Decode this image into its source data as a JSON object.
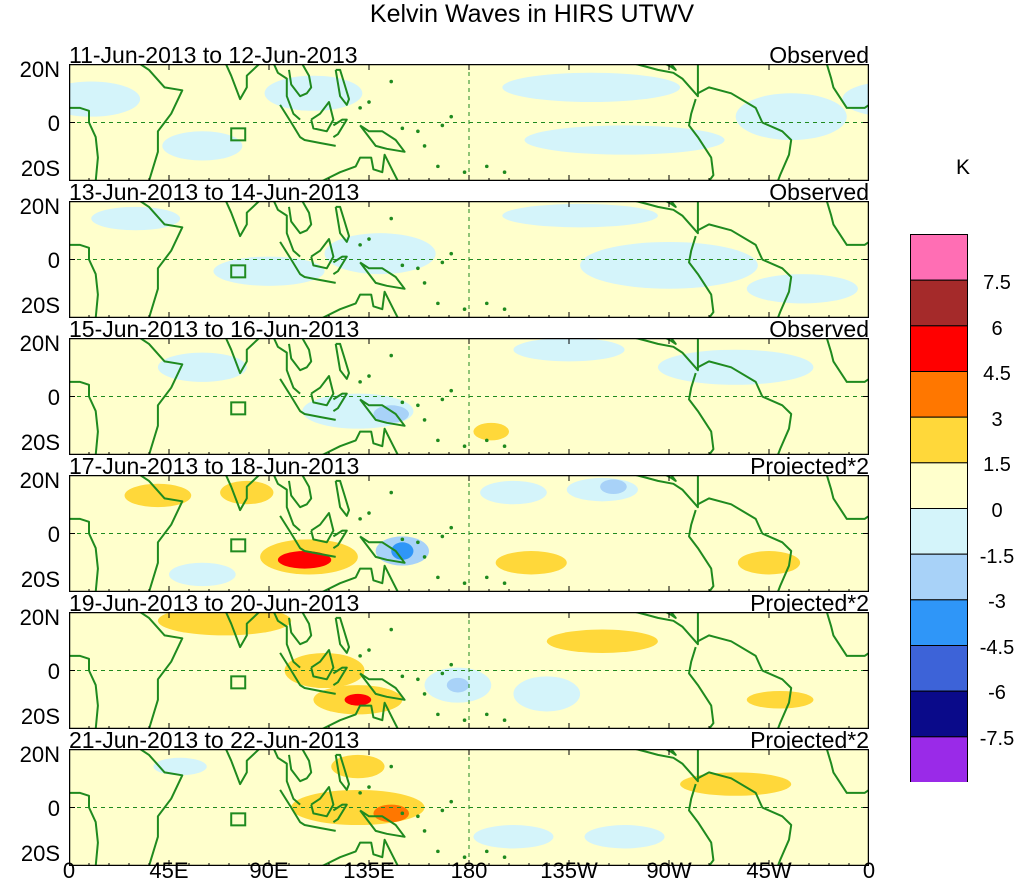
{
  "chart_data": {
    "type": "heatmap",
    "title": "Kelvin Waves in HIRS UTWV",
    "xlabel": "",
    "ylabel": "",
    "x_ticks": [
      "0",
      "45E",
      "90E",
      "135E",
      "180",
      "135W",
      "90W",
      "45W",
      "0"
    ],
    "y_ticks": [
      "20N",
      "0",
      "20S"
    ],
    "xlim": [
      0,
      360
    ],
    "ylim": [
      -20,
      20
    ],
    "colorbar": {
      "unit": "K",
      "levels": [
        "7.5",
        "6",
        "4.5",
        "3",
        "1.5",
        "0",
        "-1.5",
        "-3",
        "-4.5",
        "-6",
        "-7.5"
      ],
      "colors": [
        "#ff6eb4",
        "#a52a2a",
        "#ff0000",
        "#ff7700",
        "#ffd83a",
        "#ffffcc",
        "#d4f4fa",
        "#a8d2f8",
        "#2f96f8",
        "#3d63d8",
        "#0a0a8a",
        "#9a2ae8"
      ]
    },
    "panels": [
      {
        "date_range": "11-Jun-2013 to 12-Jun-2013",
        "kind": "Observed",
        "features": [
          {
            "lon": 10,
            "lat": 8,
            "rx": 22,
            "ry": 6,
            "value": -1.5
          },
          {
            "lon": 60,
            "lat": -8,
            "rx": 18,
            "ry": 5,
            "value": -1.5
          },
          {
            "lon": 110,
            "lat": 10,
            "rx": 22,
            "ry": 6,
            "value": -1.5
          },
          {
            "lon": 235,
            "lat": 12,
            "rx": 40,
            "ry": 5,
            "value": -1.5
          },
          {
            "lon": 250,
            "lat": -6,
            "rx": 45,
            "ry": 5,
            "value": -1.5
          },
          {
            "lon": 325,
            "lat": 2,
            "rx": 25,
            "ry": 8,
            "value": -1.5
          }
        ]
      },
      {
        "date_range": "13-Jun-2013 to 14-Jun-2013",
        "kind": "Observed",
        "features": [
          {
            "lon": 30,
            "lat": 14,
            "rx": 20,
            "ry": 4,
            "value": -1.5
          },
          {
            "lon": 90,
            "lat": -4,
            "rx": 25,
            "ry": 5,
            "value": -1.5
          },
          {
            "lon": 140,
            "lat": 2,
            "rx": 25,
            "ry": 7,
            "value": -1.5
          },
          {
            "lon": 230,
            "lat": 15,
            "rx": 35,
            "ry": 4,
            "value": -1.5
          },
          {
            "lon": 270,
            "lat": -2,
            "rx": 40,
            "ry": 8,
            "value": -1.5
          },
          {
            "lon": 330,
            "lat": -10,
            "rx": 25,
            "ry": 5,
            "value": -1.5
          }
        ]
      },
      {
        "date_range": "15-Jun-2013 to 16-Jun-2013",
        "kind": "Observed",
        "features": [
          {
            "lon": 130,
            "lat": -5,
            "rx": 25,
            "ry": 6,
            "value": -1.5
          },
          {
            "lon": 145,
            "lat": -6,
            "rx": 8,
            "ry": 3,
            "value": -3
          },
          {
            "lon": 225,
            "lat": 16,
            "rx": 25,
            "ry": 4,
            "value": -1.5
          },
          {
            "lon": 190,
            "lat": -12,
            "rx": 8,
            "ry": 3,
            "value": 1.5
          },
          {
            "lon": 300,
            "lat": 10,
            "rx": 35,
            "ry": 6,
            "value": -1.5
          },
          {
            "lon": 60,
            "lat": 10,
            "rx": 20,
            "ry": 5,
            "value": -1.5
          }
        ]
      },
      {
        "date_range": "17-Jun-2013 to 18-Jun-2013",
        "kind": "Projected*2",
        "features": [
          {
            "lon": 40,
            "lat": 13,
            "rx": 15,
            "ry": 4,
            "value": 1.5
          },
          {
            "lon": 80,
            "lat": 14,
            "rx": 12,
            "ry": 4,
            "value": 1.5
          },
          {
            "lon": 108,
            "lat": -8,
            "rx": 22,
            "ry": 6,
            "value": 1.5
          },
          {
            "lon": 106,
            "lat": -9,
            "rx": 12,
            "ry": 3,
            "value": 4.5
          },
          {
            "lon": 150,
            "lat": -6,
            "rx": 12,
            "ry": 5,
            "value": -3
          },
          {
            "lon": 150,
            "lat": -6,
            "rx": 5,
            "ry": 3,
            "value": -4.5
          },
          {
            "lon": 208,
            "lat": -10,
            "rx": 16,
            "ry": 4,
            "value": 1.5
          },
          {
            "lon": 200,
            "lat": 14,
            "rx": 15,
            "ry": 4,
            "value": -1.5
          },
          {
            "lon": 240,
            "lat": 15,
            "rx": 16,
            "ry": 4,
            "value": -1.5
          },
          {
            "lon": 245,
            "lat": 16,
            "rx": 6,
            "ry": 2.5,
            "value": -3
          },
          {
            "lon": 315,
            "lat": -10,
            "rx": 14,
            "ry": 4,
            "value": 1.5
          },
          {
            "lon": 60,
            "lat": -14,
            "rx": 15,
            "ry": 4,
            "value": -1.5
          }
        ]
      },
      {
        "date_range": "19-Jun-2013 to 20-Jun-2013",
        "kind": "Projected*2",
        "features": [
          {
            "lon": 70,
            "lat": 17,
            "rx": 30,
            "ry": 5,
            "value": 1.5
          },
          {
            "lon": 115,
            "lat": 0,
            "rx": 18,
            "ry": 6,
            "value": 1.5
          },
          {
            "lon": 130,
            "lat": -10,
            "rx": 20,
            "ry": 5,
            "value": 1.5
          },
          {
            "lon": 130,
            "lat": -10,
            "rx": 6,
            "ry": 2,
            "value": 4.5
          },
          {
            "lon": 175,
            "lat": -5,
            "rx": 15,
            "ry": 6,
            "value": -1.5
          },
          {
            "lon": 175,
            "lat": -5,
            "rx": 5,
            "ry": 2.5,
            "value": -3
          },
          {
            "lon": 215,
            "lat": -8,
            "rx": 15,
            "ry": 6,
            "value": -1.5
          },
          {
            "lon": 240,
            "lat": 10,
            "rx": 25,
            "ry": 4,
            "value": 1.5
          },
          {
            "lon": 320,
            "lat": -10,
            "rx": 15,
            "ry": 3,
            "value": 1.5
          }
        ]
      },
      {
        "date_range": "21-Jun-2013 to 22-Jun-2013",
        "kind": "Projected*2",
        "features": [
          {
            "lon": 130,
            "lat": 14,
            "rx": 12,
            "ry": 4,
            "value": 1.5
          },
          {
            "lon": 130,
            "lat": 0,
            "rx": 30,
            "ry": 6,
            "value": 1.5
          },
          {
            "lon": 145,
            "lat": -2,
            "rx": 8,
            "ry": 3,
            "value": 3
          },
          {
            "lon": 200,
            "lat": -10,
            "rx": 18,
            "ry": 4,
            "value": -1.5
          },
          {
            "lon": 250,
            "lat": -10,
            "rx": 18,
            "ry": 4,
            "value": -1.5
          },
          {
            "lon": 300,
            "lat": 8,
            "rx": 25,
            "ry": 4,
            "value": 1.5
          },
          {
            "lon": 50,
            "lat": 14,
            "rx": 12,
            "ry": 3,
            "value": -1.5
          }
        ]
      }
    ]
  }
}
